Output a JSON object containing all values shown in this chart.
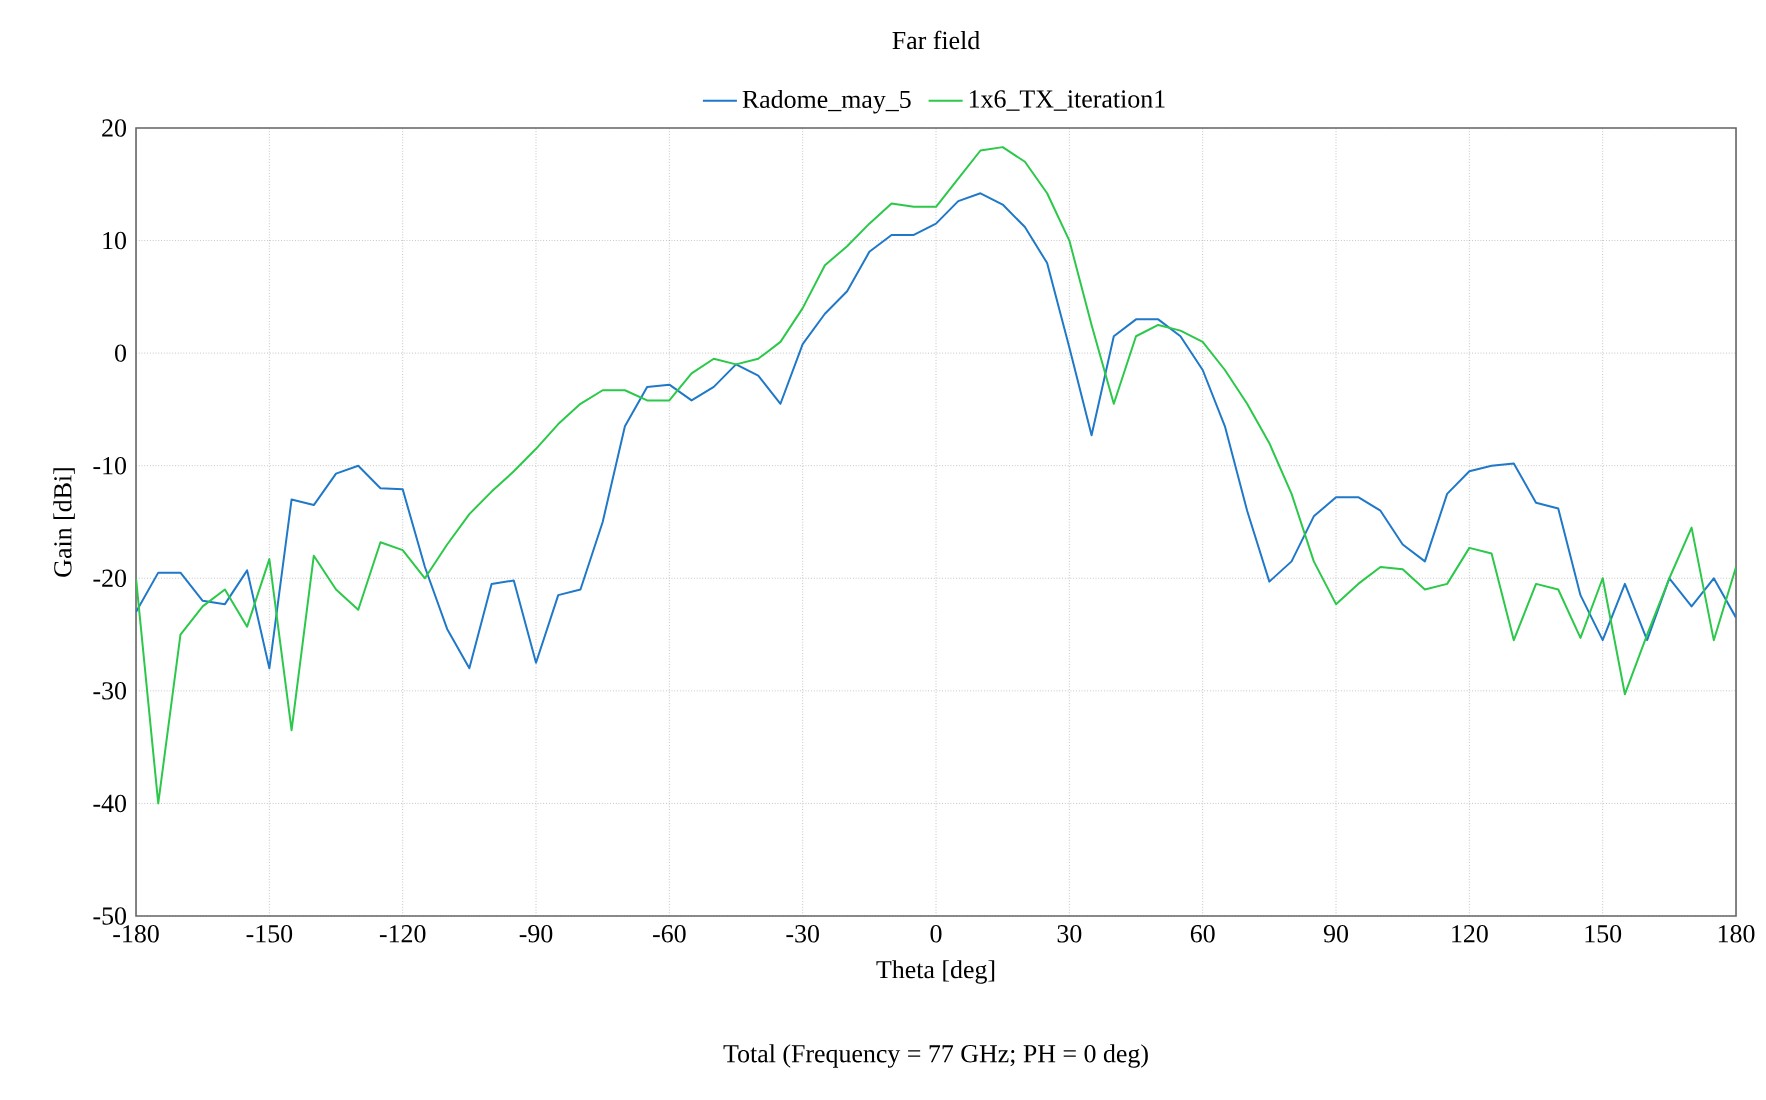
{
  "chart_data": {
    "type": "line",
    "title": "Far field",
    "xlabel": "Theta [deg]",
    "ylabel": "Gain [dBi]",
    "annotations": [
      "Total (Frequency = 77 GHz; PH = 0 deg)"
    ],
    "x": [
      -180,
      -175,
      -170,
      -165,
      -160,
      -155,
      -150,
      -145,
      -140,
      -135,
      -130,
      -125,
      -120,
      -115,
      -110,
      -105,
      -100,
      -95,
      -90,
      -85,
      -80,
      -75,
      -70,
      -65,
      -60,
      -55,
      -50,
      -45,
      -40,
      -35,
      -30,
      -25,
      -20,
      -15,
      -10,
      -5,
      0,
      5,
      10,
      15,
      20,
      25,
      30,
      35,
      40,
      45,
      50,
      55,
      60,
      65,
      70,
      75,
      80,
      85,
      90,
      95,
      100,
      105,
      110,
      115,
      120,
      125,
      130,
      135,
      140,
      145,
      150,
      155,
      160,
      165,
      170,
      175,
      180
    ],
    "series": [
      {
        "name": "Radome_may_5",
        "color": "#1f78c8",
        "values": [
          -23,
          -19.5,
          -19.5,
          -22,
          -22.3,
          -19.3,
          -28,
          -13,
          -13.5,
          -10.7,
          -10,
          -12,
          -12.1,
          -19,
          -24.5,
          -28,
          -20.5,
          -20.2,
          -27.5,
          -21.5,
          -21,
          -15,
          -6.5,
          -3,
          -2.8,
          -4.2,
          -3,
          -1,
          -2,
          -4.5,
          0.8,
          3.5,
          5.5,
          9,
          10.5,
          10.5,
          11.5,
          13.5,
          14.2,
          13.2,
          11.2,
          8,
          0.5,
          -7.3,
          1.5,
          3,
          3,
          1.5,
          -1.5,
          -6.5,
          -14,
          -20.3,
          -18.5,
          -14.5,
          -12.8,
          -12.8,
          -14,
          -17,
          -18.5,
          -12.5,
          -10.5,
          -10,
          -9.8,
          -13.3,
          -13.8,
          -21.5,
          -25.5,
          -20.5,
          -25.5,
          -20,
          -22.5,
          -20,
          -23.5
        ]
      },
      {
        "name": "1x6_TX_iteration1",
        "color": "#2cc84a",
        "values": [
          -20,
          -40,
          -25,
          -22.5,
          -21,
          -24.3,
          -18.3,
          -33.5,
          -18,
          -21,
          -22.8,
          -16.8,
          -17.5,
          -20,
          -17,
          -14.3,
          -12.3,
          -10.5,
          -8.5,
          -6.3,
          -4.5,
          -3.3,
          -3.3,
          -4.2,
          -4.2,
          -1.8,
          -0.5,
          -1,
          -0.5,
          1,
          4,
          7.8,
          9.5,
          11.5,
          13.3,
          13,
          13,
          15.5,
          18,
          18.3,
          17,
          14.2,
          10,
          2.5,
          -4.5,
          1.5,
          2.5,
          2,
          1,
          -1.5,
          -4.5,
          -8,
          -12.5,
          -18.5,
          -22.3,
          -20.5,
          -19,
          -19.2,
          -21,
          -20.5,
          -17.3,
          -17.8,
          -25.5,
          -20.5,
          -21,
          -25.3,
          -20,
          -30.3,
          -25,
          -20,
          -15.5,
          -25.5,
          -19
        ]
      }
    ],
    "xlim": [
      -180,
      180
    ],
    "ylim": [
      -50,
      20
    ],
    "xticks": [
      -180,
      -150,
      -120,
      -90,
      -60,
      -30,
      0,
      30,
      60,
      90,
      120,
      150,
      180
    ],
    "yticks": [
      -50,
      -40,
      -30,
      -20,
      -10,
      0,
      10,
      20
    ],
    "grid": true,
    "legend": "top",
    "marker": "none",
    "line_style": "solid"
  }
}
